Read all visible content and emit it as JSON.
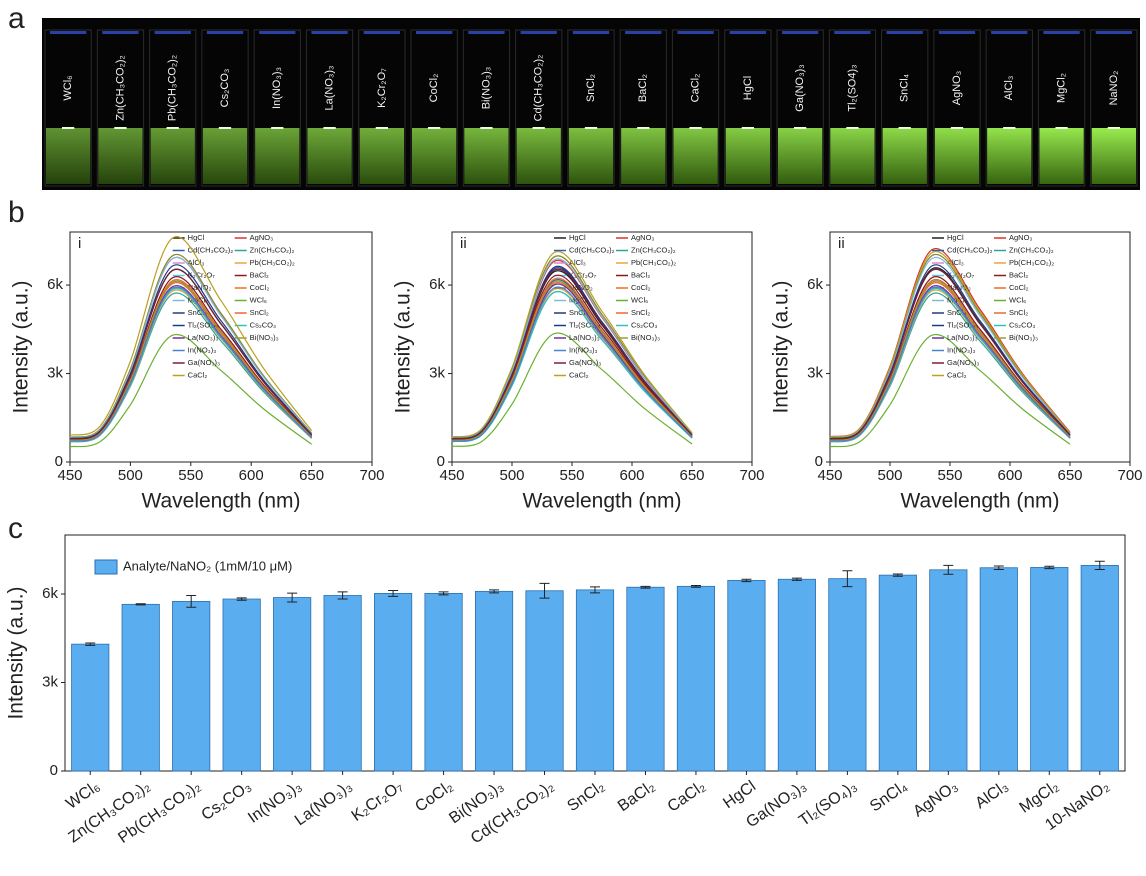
{
  "panel_labels": [
    "a",
    "b",
    "c"
  ],
  "photo": {
    "vial_labels": [
      "WCl₆",
      "Zn(CH₃CO₂)₂",
      "Pb(CH₃CO₂)₂",
      "Cs₂CO₃",
      "In(NO₃)₃",
      "La(NO₃)₃",
      "K₂Cr₂O₇",
      "CoCl₂",
      "Bi(NO₃)₃",
      "Cd(CH₃CO₂)₂",
      "SnCl₂",
      "BaCl₂",
      "CaCl₂",
      "HgCl",
      "Ga(NO₃)₃",
      "Tl₂(SO4)₃",
      "SnCl₄",
      "AgNO₃",
      "AlCl₃",
      "MgCl₂",
      "NaNO₂"
    ]
  },
  "chart_data": [
    {
      "type": "line",
      "panel_label": "i",
      "xlabel": "Wavelength (nm)",
      "ylabel": "Intensity (a.u.)",
      "x": [
        450,
        475,
        500,
        535,
        575,
        610,
        650
      ],
      "xlim": [
        450,
        700
      ],
      "xticks": [
        450,
        500,
        550,
        600,
        650,
        700
      ],
      "ylim": [
        0,
        7800
      ],
      "yticks": [
        0,
        {
          "value": 3000,
          "label": "3k"
        },
        {
          "value": 6000,
          "label": "6k"
        }
      ],
      "series": [
        {
          "name": "HgCl",
          "color": "#222222",
          "values": [
            780,
            1040,
            2930,
            6500,
            4680,
            2730,
            910
          ]
        },
        {
          "name": "AgNO₃",
          "color": "#e0302a",
          "values": [
            830,
            1100,
            3100,
            6900,
            4970,
            2900,
            970
          ]
        },
        {
          "name": "Cd(CH₃CO₂)₂",
          "color": "#2f5fb0",
          "values": [
            730,
            980,
            2750,
            6100,
            4390,
            2560,
            850
          ]
        },
        {
          "name": "Zn(CH₃CO₂)₂",
          "color": "#2aa59a",
          "values": [
            680,
            910,
            2570,
            5700,
            4100,
            2390,
            800
          ]
        },
        {
          "name": "AlCl₃",
          "color": "#d88ad0",
          "values": [
            840,
            1120,
            3150,
            7000,
            5040,
            2940,
            980
          ]
        },
        {
          "name": "Pb(CH₃CO₂)₂",
          "color": "#f0a040",
          "values": [
            700,
            930,
            2610,
            5800,
            4180,
            2440,
            810
          ]
        },
        {
          "name": "K₂Cr₂O₇",
          "color": "#5fc8e8",
          "values": [
            730,
            970,
            2720,
            6050,
            4360,
            2540,
            850
          ]
        },
        {
          "name": "BaCl₂",
          "color": "#8b1a1a",
          "values": [
            750,
            1000,
            2810,
            6250,
            4500,
            2630,
            880
          ]
        },
        {
          "name": "NaNO₂",
          "color": "#8a8a20",
          "values": [
            840,
            1120,
            3150,
            7000,
            5040,
            2940,
            980
          ]
        },
        {
          "name": "CoCl₂",
          "color": "#f07020",
          "values": [
            720,
            960,
            2700,
            6050,
            4350,
            2550,
            860
          ]
        },
        {
          "name": "MgCl₂",
          "color": "#80b8e0",
          "values": [
            820,
            1090,
            3080,
            6900,
            4960,
            2890,
            960
          ]
        },
        {
          "name": "WCl₆",
          "color": "#6ab030",
          "values": [
            520,
            690,
            1940,
            4300,
            3100,
            1810,
            600
          ]
        },
        {
          "name": "SnCl₄",
          "color": "#203a80",
          "values": [
            800,
            1060,
            2990,
            6650,
            4790,
            2790,
            930
          ]
        },
        {
          "name": "SnCl₂",
          "color": "#e86a30",
          "values": [
            740,
            980,
            2770,
            6150,
            4430,
            2580,
            860
          ]
        },
        {
          "name": "Tl₂(SO₄)₃",
          "color": "#1a3a8a",
          "values": [
            790,
            1050,
            2920,
            6500,
            4690,
            2740,
            920
          ]
        },
        {
          "name": "Cs₂CO₃",
          "color": "#30c0c0",
          "values": [
            700,
            940,
            2630,
            5850,
            4210,
            2460,
            820
          ]
        },
        {
          "name": "La(NO₃)₃",
          "color": "#7030a0",
          "values": [
            710,
            950,
            2680,
            5950,
            4280,
            2500,
            830
          ]
        },
        {
          "name": "Bi(NO₃)₃",
          "color": "#9a9a30",
          "values": [
            740,
            970,
            2740,
            6100,
            4400,
            2570,
            860
          ]
        },
        {
          "name": "In(NO₃)₃",
          "color": "#4a80d0",
          "values": [
            710,
            940,
            2660,
            5900,
            4250,
            2480,
            830
          ]
        },
        {
          "name": "Ga(NO₃)₃",
          "color": "#7a2030",
          "values": [
            780,
            1040,
            2930,
            6500,
            4680,
            2730,
            910
          ]
        },
        {
          "name": "CaCl₂",
          "color": "#b8a020",
          "values": [
            910,
            1220,
            3420,
            7600,
            5470,
            3190,
            1060
          ]
        }
      ]
    },
    {
      "type": "line",
      "panel_label": "ii",
      "xlabel": "Wavelength (nm)",
      "ylabel": "Intensity (a.u.)",
      "x": [
        450,
        475,
        500,
        535,
        575,
        610,
        650
      ],
      "xlim": [
        450,
        700
      ],
      "xticks": [
        450,
        500,
        550,
        600,
        650,
        700
      ],
      "ylim": [
        0,
        7800
      ],
      "yticks": [
        0,
        {
          "value": 3000,
          "label": "3k"
        },
        {
          "value": 6000,
          "label": "6k"
        }
      ],
      "series": [
        {
          "name": "HgCl",
          "color": "#222222",
          "values": [
            770,
            1030,
            2900,
            6450,
            4640,
            2710,
            900
          ]
        },
        {
          "name": "AgNO₃",
          "color": "#e0302a",
          "values": [
            810,
            1080,
            3050,
            6800,
            4900,
            2860,
            950
          ]
        },
        {
          "name": "Cd(CH₃CO₂)₂",
          "color": "#2f5fb0",
          "values": [
            740,
            990,
            2780,
            6150,
            4430,
            2580,
            860
          ]
        },
        {
          "name": "Zn(CH₃CO₂)₂",
          "color": "#2aa59a",
          "values": [
            690,
            920,
            2590,
            5750,
            4140,
            2420,
            810
          ]
        },
        {
          "name": "AlCl₃",
          "color": "#d88ad0",
          "values": [
            830,
            1100,
            3120,
            6950,
            5000,
            2920,
            970
          ]
        },
        {
          "name": "Pb(CH₃CO₂)₂",
          "color": "#f0a040",
          "values": [
            700,
            940,
            2630,
            5850,
            4210,
            2460,
            820
          ]
        },
        {
          "name": "K₂Cr₂O₇",
          "color": "#5fc8e8",
          "values": [
            720,
            960,
            2700,
            6000,
            4320,
            2520,
            840
          ]
        },
        {
          "name": "BaCl₂",
          "color": "#8b1a1a",
          "values": [
            760,
            1010,
            2840,
            6300,
            4540,
            2650,
            880
          ]
        },
        {
          "name": "NaNO₂",
          "color": "#8a8a20",
          "values": [
            830,
            1110,
            3130,
            6950,
            5000,
            2920,
            970
          ]
        },
        {
          "name": "CoCl₂",
          "color": "#f07020",
          "values": [
            730,
            970,
            2720,
            6050,
            4360,
            2540,
            850
          ]
        },
        {
          "name": "MgCl₂",
          "color": "#80b8e0",
          "values": [
            820,
            1090,
            3070,
            6850,
            4930,
            2880,
            960
          ]
        },
        {
          "name": "WCl₆",
          "color": "#6ab030",
          "values": [
            530,
            700,
            1960,
            4350,
            3130,
            1830,
            610
          ]
        },
        {
          "name": "SnCl₄",
          "color": "#203a80",
          "values": [
            790,
            1060,
            2970,
            6600,
            4750,
            2770,
            920
          ]
        },
        {
          "name": "SnCl₂",
          "color": "#e86a30",
          "values": [
            740,
            990,
            2790,
            6200,
            4460,
            2600,
            870
          ]
        },
        {
          "name": "Tl₂(SO₄)₃",
          "color": "#1a3a8a",
          "values": [
            790,
            1050,
            2950,
            6550,
            4720,
            2750,
            920
          ]
        },
        {
          "name": "Cs₂CO₃",
          "color": "#30c0c0",
          "values": [
            690,
            920,
            2590,
            5750,
            4140,
            2420,
            810
          ]
        },
        {
          "name": "La(NO₃)₃",
          "color": "#7030a0",
          "values": [
            720,
            960,
            2700,
            6000,
            4320,
            2520,
            840
          ]
        },
        {
          "name": "Bi(NO₃)₃",
          "color": "#9a9a30",
          "values": [
            730,
            980,
            2750,
            6100,
            4390,
            2560,
            850
          ]
        },
        {
          "name": "In(NO₃)₃",
          "color": "#4a80d0",
          "values": [
            700,
            940,
            2650,
            5900,
            4250,
            2480,
            830
          ]
        },
        {
          "name": "Ga(NO₃)₃",
          "color": "#7a2030",
          "values": [
            780,
            1040,
            2920,
            6500,
            4680,
            2730,
            910
          ]
        },
        {
          "name": "CaCl₂",
          "color": "#b8a020",
          "values": [
            850,
            1140,
            3200,
            7100,
            5110,
            2980,
            990
          ]
        }
      ]
    },
    {
      "type": "line",
      "panel_label": "ii",
      "xlabel": "Wavelength (nm)",
      "ylabel": "Intensity (a.u.)",
      "x": [
        450,
        475,
        500,
        535,
        575,
        610,
        650
      ],
      "xlim": [
        450,
        700
      ],
      "xticks": [
        450,
        500,
        550,
        600,
        650,
        700
      ],
      "ylim": [
        0,
        7800
      ],
      "yticks": [
        0,
        {
          "value": 3000,
          "label": "3k"
        },
        {
          "value": 6000,
          "label": "6k"
        }
      ],
      "series": [
        {
          "name": "HgCl",
          "color": "#222222",
          "values": [
            790,
            1050,
            2950,
            6550,
            4720,
            2750,
            920
          ]
        },
        {
          "name": "AgNO₃",
          "color": "#e0302a",
          "values": [
            860,
            1150,
            3240,
            7200,
            5180,
            3020,
            1010
          ]
        },
        {
          "name": "Cd(CH₃CO₂)₂",
          "color": "#2f5fb0",
          "values": [
            740,
            980,
            2770,
            6150,
            4430,
            2580,
            860
          ]
        },
        {
          "name": "Zn(CH₃CO₂)₂",
          "color": "#2aa59a",
          "values": [
            680,
            910,
            2570,
            5700,
            4100,
            2390,
            800
          ]
        },
        {
          "name": "AlCl₃",
          "color": "#d88ad0",
          "values": [
            840,
            1120,
            3150,
            7000,
            5040,
            2940,
            980
          ]
        },
        {
          "name": "Pb(CH₃CO₂)₂",
          "color": "#f0a040",
          "values": [
            700,
            930,
            2610,
            5800,
            4180,
            2440,
            810
          ]
        },
        {
          "name": "K₂Cr₂O₇",
          "color": "#5fc8e8",
          "values": [
            730,
            970,
            2720,
            6050,
            4360,
            2540,
            850
          ]
        },
        {
          "name": "BaCl₂",
          "color": "#8b1a1a",
          "values": [
            750,
            1000,
            2810,
            6250,
            4500,
            2630,
            880
          ]
        },
        {
          "name": "NaNO₂",
          "color": "#8a8a20",
          "values": [
            840,
            1120,
            3150,
            7000,
            5040,
            2940,
            980
          ]
        },
        {
          "name": "CoCl₂",
          "color": "#f07020",
          "values": [
            720,
            960,
            2700,
            6050,
            4350,
            2550,
            860
          ]
        },
        {
          "name": "MgCl₂",
          "color": "#80b8e0",
          "values": [
            820,
            1090,
            3080,
            6900,
            4960,
            2890,
            960
          ]
        },
        {
          "name": "WCl₆",
          "color": "#6ab030",
          "values": [
            520,
            690,
            1940,
            4300,
            3100,
            1810,
            600
          ]
        },
        {
          "name": "SnCl₄",
          "color": "#203a80",
          "values": [
            800,
            1060,
            2990,
            6650,
            4790,
            2790,
            930
          ]
        },
        {
          "name": "SnCl₂",
          "color": "#e86a30",
          "values": [
            740,
            980,
            2770,
            6150,
            4430,
            2580,
            860
          ]
        },
        {
          "name": "Tl₂(SO₄)₃",
          "color": "#1a3a8a",
          "values": [
            790,
            1050,
            2920,
            6500,
            4690,
            2740,
            920
          ]
        },
        {
          "name": "Cs₂CO₃",
          "color": "#30c0c0",
          "values": [
            700,
            940,
            2630,
            5850,
            4210,
            2460,
            820
          ]
        },
        {
          "name": "La(NO₃)₃",
          "color": "#7030a0",
          "values": [
            710,
            950,
            2680,
            5950,
            4280,
            2500,
            830
          ]
        },
        {
          "name": "Bi(NO₃)₃",
          "color": "#9a9a30",
          "values": [
            740,
            970,
            2740,
            6100,
            4400,
            2570,
            860
          ]
        },
        {
          "name": "In(NO₃)₃",
          "color": "#4a80d0",
          "values": [
            710,
            940,
            2660,
            5900,
            4250,
            2480,
            830
          ]
        },
        {
          "name": "Ga(NO₃)₃",
          "color": "#7a2030",
          "values": [
            780,
            1040,
            2930,
            6500,
            4680,
            2730,
            910
          ]
        },
        {
          "name": "CaCl₂",
          "color": "#b8a020",
          "values": [
            850,
            1140,
            3200,
            7100,
            5110,
            2980,
            990
          ]
        }
      ]
    },
    {
      "type": "bar",
      "ylabel": "Intensity (a.u.)",
      "categories": [
        "WCl₆",
        "Zn(CH₃CO₂)₂",
        "Pb(CH₃CO₂)₂",
        "Cs₂CO₃",
        "In(NO₃)₃",
        "La(NO₃)₃",
        "K₂Cr₂O₇",
        "CoCl₂",
        "Bi(NO₃)₃",
        "Cd(CH₃CO₂)₂",
        "SnCl₂",
        "BaCl₂",
        "CaCl₂",
        "HgCl",
        "Ga(NO₃)₃",
        "Tl₂(SO₄)₃",
        "SnCl₄",
        "AgNO₃",
        "AlCl₃",
        "MgCl₂",
        "10-NaNO₂"
      ],
      "series": [
        {
          "name": "Analyte/NaNO₂ (1mM/10 μM)",
          "color": "#5aaef0",
          "values": [
            4300,
            5650,
            5750,
            5830,
            5880,
            5950,
            6020,
            6020,
            6090,
            6110,
            6140,
            6230,
            6260,
            6460,
            6500,
            6520,
            6640,
            6820,
            6890,
            6900,
            6970
          ],
          "errors": [
            40,
            20,
            200,
            40,
            150,
            120,
            100,
            50,
            50,
            250,
            100,
            30,
            30,
            40,
            40,
            270,
            40,
            150,
            60,
            40,
            140
          ]
        }
      ],
      "ylim": [
        0,
        8000
      ],
      "yticks": [
        0,
        {
          "value": 3000,
          "label": "3k"
        },
        {
          "value": 6000,
          "label": "6k"
        }
      ]
    }
  ]
}
